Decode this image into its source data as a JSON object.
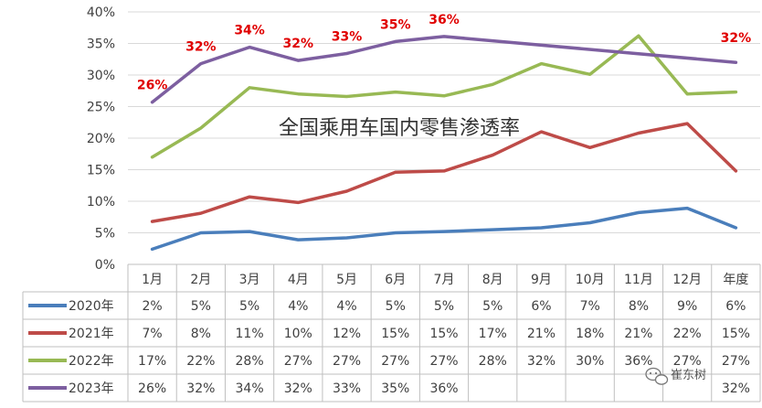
{
  "chart_data": {
    "type": "line",
    "title": "全国乘用车国内零售渗透率",
    "categories": [
      "1月",
      "2月",
      "3月",
      "4月",
      "5月",
      "6月",
      "7月",
      "8月",
      "9月",
      "10月",
      "11月",
      "12月",
      "年度"
    ],
    "y_ticks": [
      "0%",
      "5%",
      "10%",
      "15%",
      "20%",
      "25%",
      "30%",
      "35%",
      "40%"
    ],
    "ylim": [
      0,
      40
    ],
    "grid": true,
    "legend_placement": "table-left",
    "series": [
      {
        "name": "2020年",
        "color": "#4a7ebb",
        "values": [
          2.4,
          5.0,
          5.2,
          3.9,
          4.2,
          5.0,
          5.2,
          5.5,
          5.8,
          6.6,
          8.2,
          8.9,
          5.8
        ],
        "table_labels": [
          "2%",
          "5%",
          "5%",
          "4%",
          "4%",
          "5%",
          "5%",
          "5%",
          "6%",
          "7%",
          "8%",
          "9%",
          "6%"
        ]
      },
      {
        "name": "2021年",
        "color": "#be4b48",
        "values": [
          6.8,
          8.1,
          10.7,
          9.8,
          11.6,
          14.6,
          14.8,
          17.3,
          21.0,
          18.5,
          20.8,
          22.3,
          14.8
        ],
        "table_labels": [
          "7%",
          "8%",
          "11%",
          "10%",
          "12%",
          "15%",
          "15%",
          "17%",
          "21%",
          "18%",
          "21%",
          "22%",
          "15%"
        ]
      },
      {
        "name": "2022年",
        "color": "#98b954",
        "values": [
          17.0,
          21.6,
          28.0,
          27.0,
          26.6,
          27.3,
          26.7,
          28.5,
          31.8,
          30.1,
          36.2,
          27.0,
          27.3
        ],
        "table_labels": [
          "17%",
          "22%",
          "28%",
          "27%",
          "27%",
          "27%",
          "27%",
          "28%",
          "32%",
          "30%",
          "36%",
          "27%",
          "27%"
        ]
      },
      {
        "name": "2023年",
        "color": "#7d5fa0",
        "values": [
          25.7,
          31.8,
          34.4,
          32.3,
          33.4,
          35.3,
          36.1,
          null,
          null,
          null,
          null,
          null,
          32.0
        ],
        "table_labels": [
          "26%",
          "32%",
          "34%",
          "32%",
          "33%",
          "35%",
          "36%",
          "",
          "",
          "",
          "",
          "",
          "32%"
        ],
        "data_labels": [
          "26%",
          "32%",
          "34%",
          "32%",
          "33%",
          "35%",
          "36%",
          "",
          "",
          "",
          "",
          "",
          "32%"
        ]
      }
    ]
  },
  "watermark": {
    "icon": "wechat-icon",
    "text": "崔东树"
  }
}
